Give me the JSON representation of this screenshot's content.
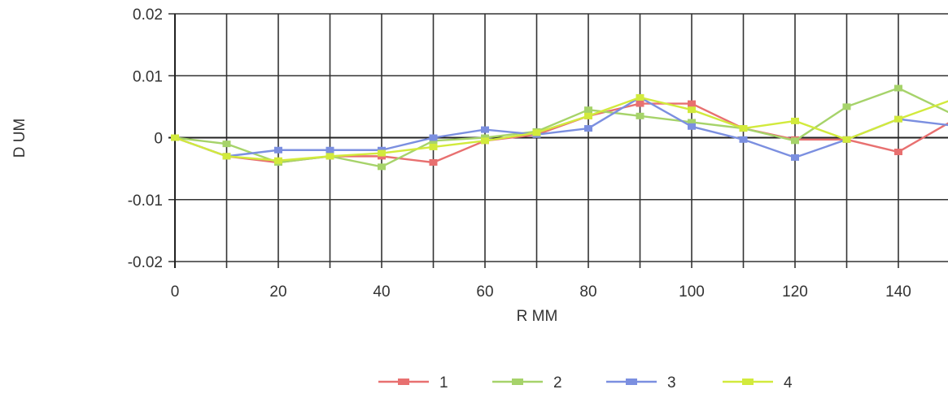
{
  "chart_data": {
    "type": "line",
    "xlabel": "R MM",
    "ylabel": "D UM",
    "xlim": [
      0,
      150
    ],
    "ylim": [
      -0.02,
      0.02
    ],
    "x_ticks": [
      0,
      20,
      40,
      60,
      80,
      100,
      120,
      140
    ],
    "x_tick_labels": [
      "0",
      "20",
      "40",
      "60",
      "80",
      "100",
      "120",
      "140"
    ],
    "y_ticks": [
      0.02,
      0.01,
      0,
      -0.01,
      -0.02
    ],
    "y_tick_labels": [
      "0.02",
      "0.01",
      "0",
      "-0.01",
      "-0.02"
    ],
    "grid": true,
    "legend_position": "bottom",
    "x": [
      0,
      10,
      20,
      30,
      40,
      50,
      60,
      70,
      80,
      90,
      100,
      110,
      120,
      130,
      140,
      150
    ],
    "series": [
      {
        "name": "1",
        "color": "#e87070",
        "values": [
          0,
          -0.003,
          -0.004,
          -0.003,
          -0.003,
          -0.004,
          -0.0005,
          0.0005,
          0.0035,
          0.0055,
          0.0055,
          0.0015,
          -0.0003,
          -0.0003,
          -0.0023,
          0.0025
        ]
      },
      {
        "name": "2",
        "color": "#a6d36a",
        "values": [
          0,
          -0.001,
          -0.004,
          -0.003,
          -0.0047,
          -0.0005,
          0.0,
          0.001,
          0.0045,
          0.0035,
          0.0025,
          0.0015,
          -0.0005,
          0.005,
          0.008,
          0.004
        ]
      },
      {
        "name": "3",
        "color": "#7b8fe0",
        "values": [
          0,
          -0.003,
          -0.002,
          -0.002,
          -0.002,
          0.0,
          0.0013,
          0.0005,
          0.0015,
          0.0065,
          0.0018,
          -0.0003,
          -0.0032,
          -0.0003,
          0.003,
          0.002
        ]
      },
      {
        "name": "4",
        "color": "#d2ea3c",
        "values": [
          0,
          -0.003,
          -0.0037,
          -0.003,
          -0.0025,
          -0.0015,
          -0.0005,
          0.0008,
          0.0035,
          0.0065,
          0.0045,
          0.0015,
          0.0027,
          -0.0003,
          0.003,
          0.006
        ]
      }
    ]
  }
}
